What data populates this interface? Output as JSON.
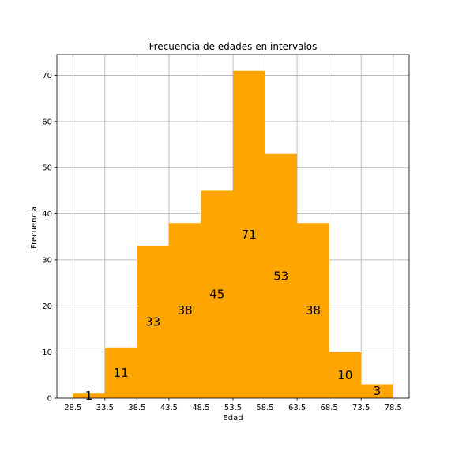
{
  "chart_data": {
    "type": "bar",
    "title": "Frecuencia de edades en intervalos",
    "xlabel": "Edad",
    "ylabel": "Frecuencia",
    "bin_edges": [
      28.5,
      33.5,
      38.5,
      43.5,
      48.5,
      53.5,
      58.5,
      63.5,
      68.5,
      73.5,
      78.5
    ],
    "categories": [
      "28.5–33.5",
      "33.5–38.5",
      "38.5–43.5",
      "43.5–48.5",
      "48.5–53.5",
      "53.5–58.5",
      "58.5–63.5",
      "63.5–68.5",
      "68.5–73.5",
      "73.5–78.5"
    ],
    "values": [
      1,
      11,
      33,
      38,
      45,
      71,
      53,
      38,
      10,
      3
    ],
    "data_labels": [
      "1",
      "11",
      "33",
      "38",
      "45",
      "71",
      "53",
      "38",
      "10",
      "3"
    ],
    "x_ticks": [
      "28.5",
      "33.5",
      "38.5",
      "43.5",
      "48.5",
      "53.5",
      "58.5",
      "63.5",
      "68.5",
      "73.5",
      "78.5"
    ],
    "y_ticks": [
      "0",
      "10",
      "20",
      "30",
      "40",
      "50",
      "60",
      "70"
    ],
    "xlim": [
      26.0,
      81.0
    ],
    "ylim": [
      0,
      74.55
    ],
    "grid": true,
    "bar_color": "#ffa500"
  }
}
